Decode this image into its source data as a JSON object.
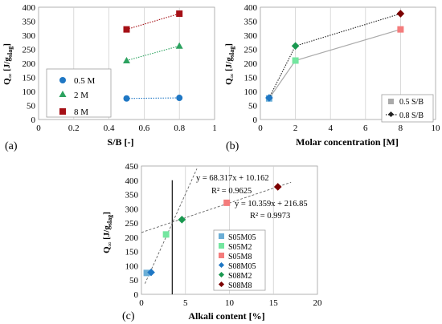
{
  "chart_data": [
    {
      "panel_label": "(a)",
      "type": "scatter",
      "xlabel": "S/B [-]",
      "ylabel_main": "Q",
      "ylabel_sub": "∞",
      "ylabel_unit_main": " [J/g",
      "ylabel_unit_sub": "slag",
      "ylabel_unit_end": "]",
      "xlim": [
        0,
        1
      ],
      "ylim": [
        0,
        400
      ],
      "xticks": [
        0,
        0.2,
        0.4,
        0.6,
        0.8,
        1
      ],
      "xtick_labels": [
        "0",
        "0.2",
        "0.4",
        "0.6",
        "0.8",
        "1"
      ],
      "yticks": [
        0,
        50,
        100,
        150,
        200,
        250,
        300,
        350,
        400
      ],
      "grid": "vertical",
      "legend_position": "left",
      "series": [
        {
          "name": "0.5 M",
          "marker": "circle",
          "color": "#1f77c4",
          "line": "dotted",
          "points": [
            [
              0.5,
              75
            ],
            [
              0.8,
              77
            ]
          ]
        },
        {
          "name": "2 M",
          "marker": "triangle",
          "color": "#2ca25f",
          "line": "dotted",
          "points": [
            [
              0.5,
              210
            ],
            [
              0.8,
              262
            ]
          ]
        },
        {
          "name": "8 M",
          "marker": "square",
          "color": "#a50f15",
          "line": "dotted",
          "points": [
            [
              0.5,
              321
            ],
            [
              0.8,
              377
            ]
          ]
        }
      ]
    },
    {
      "panel_label": "(b)",
      "type": "line",
      "xlabel": "Molar concentration [M]",
      "ylabel_main": "Q",
      "ylabel_sub": "∞",
      "ylabel_unit_main": " [J/g",
      "ylabel_unit_sub": "slag",
      "ylabel_unit_end": "]",
      "xlim": [
        0,
        10
      ],
      "ylim": [
        0,
        400
      ],
      "xticks": [
        0,
        2,
        4,
        6,
        8,
        10
      ],
      "xtick_labels": [
        "0",
        "2",
        "4",
        "6",
        "8",
        "10"
      ],
      "yticks": [
        0,
        50,
        100,
        150,
        200,
        250,
        300,
        350,
        400
      ],
      "grid": "vertical",
      "legend_position": "bottom-right",
      "series": [
        {
          "name": "0.5 S/B",
          "marker": "square",
          "color": "#aaaaaa",
          "line": "solid",
          "point_colors": [
            "#6baed6",
            "#74e6a0",
            "#f47c7c"
          ],
          "points": [
            [
              0.5,
              75
            ],
            [
              2,
              210
            ],
            [
              8,
              321
            ]
          ]
        },
        {
          "name": "0.8 S/B",
          "marker": "diamond",
          "color": "#222222",
          "line": "dotted",
          "point_colors": [
            "#1f77c4",
            "#1a9850",
            "#7b0000"
          ],
          "points": [
            [
              0.5,
              77
            ],
            [
              2,
              262
            ],
            [
              8,
              377
            ]
          ]
        }
      ]
    },
    {
      "panel_label": "(c)",
      "type": "scatter",
      "xlabel": "Alkali content [%]",
      "ylabel_main": "Q",
      "ylabel_sub": "∞",
      "ylabel_unit_main": " [J/g",
      "ylabel_unit_sub": "slag",
      "ylabel_unit_end": "]",
      "xlim": [
        0,
        20
      ],
      "ylim": [
        0,
        450
      ],
      "xticks": [
        0,
        5,
        10,
        15,
        20
      ],
      "xtick_labels": [
        "0",
        "5",
        "10",
        "15",
        "20"
      ],
      "yticks": [
        0,
        50,
        100,
        150,
        200,
        250,
        300,
        350,
        400,
        450
      ],
      "grid": "vertical",
      "legend_position": "center",
      "vertical_line_x": 3.5,
      "series": [
        {
          "name": "S05M05",
          "marker": "square",
          "color": "#6baed6",
          "points": [
            [
              0.6,
              75
            ]
          ]
        },
        {
          "name": "S05M2",
          "marker": "square",
          "color": "#74e6a0",
          "points": [
            [
              2.8,
              210
            ]
          ]
        },
        {
          "name": "S05M8",
          "marker": "square",
          "color": "#f47c7c",
          "points": [
            [
              9.7,
              321
            ]
          ]
        },
        {
          "name": "S08M05",
          "marker": "diamond",
          "color": "#1f77c4",
          "points": [
            [
              1.1,
              77
            ]
          ]
        },
        {
          "name": "S08M2",
          "marker": "diamond",
          "color": "#1a9850",
          "points": [
            [
              4.6,
              262
            ]
          ]
        },
        {
          "name": "S08M8",
          "marker": "diamond",
          "color": "#7b0000",
          "points": [
            [
              15.5,
              377
            ]
          ]
        }
      ],
      "trendlines": [
        {
          "slope": 68.317,
          "intercept": 10.162,
          "x_range": [
            0.4,
            6.3
          ]
        },
        {
          "slope": 10.359,
          "intercept": 216.85,
          "x_range": [
            0,
            17
          ]
        }
      ],
      "annotations": [
        {
          "eq": "y = 68.317x + 10.162",
          "r2": "R² = 0.9625"
        },
        {
          "eq": "y = 10.359x + 216.85",
          "r2": "R² = 0.9973"
        }
      ]
    }
  ]
}
